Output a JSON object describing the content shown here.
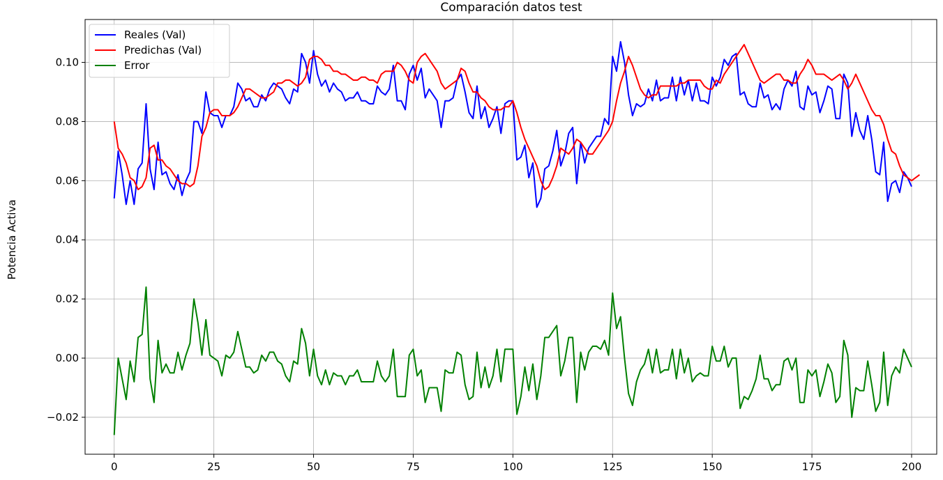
{
  "chart_data": {
    "type": "line",
    "title": "Comparación datos test",
    "xlabel": "",
    "ylabel": "Potencia Activa",
    "xlim": [
      -7.3,
      206.3
    ],
    "ylim": [
      -0.0325,
      0.1145
    ],
    "x_ticks": [
      0,
      25,
      50,
      75,
      100,
      125,
      150,
      175,
      200
    ],
    "x_tick_labels": [
      "0",
      "25",
      "50",
      "75",
      "100",
      "125",
      "150",
      "175",
      "200"
    ],
    "y_ticks": [
      -0.02,
      0.0,
      0.02,
      0.04,
      0.06,
      0.08,
      0.1
    ],
    "y_tick_labels": [
      "−0.02",
      "0.00",
      "0.02",
      "0.04",
      "0.06",
      "0.08",
      "0.10"
    ],
    "grid": true,
    "legend_position": "top-left",
    "series": [
      {
        "name": "Reales (Val)",
        "color": "#0000ff",
        "values": [
          0.054,
          0.07,
          0.062,
          0.052,
          0.06,
          0.052,
          0.064,
          0.066,
          0.086,
          0.064,
          0.057,
          0.073,
          0.062,
          0.063,
          0.059,
          0.057,
          0.062,
          0.055,
          0.06,
          0.063,
          0.08,
          0.08,
          0.076,
          0.09,
          0.083,
          0.082,
          0.082,
          0.078,
          0.082,
          0.082,
          0.085,
          0.093,
          0.091,
          0.087,
          0.088,
          0.085,
          0.085,
          0.089,
          0.087,
          0.091,
          0.093,
          0.092,
          0.091,
          0.088,
          0.086,
          0.091,
          0.09,
          0.103,
          0.1,
          0.093,
          0.104,
          0.096,
          0.092,
          0.094,
          0.09,
          0.093,
          0.091,
          0.09,
          0.087,
          0.088,
          0.088,
          0.09,
          0.087,
          0.087,
          0.086,
          0.086,
          0.092,
          0.09,
          0.089,
          0.091,
          0.099,
          0.087,
          0.087,
          0.084,
          0.096,
          0.099,
          0.094,
          0.098,
          0.088,
          0.091,
          0.089,
          0.087,
          0.078,
          0.087,
          0.087,
          0.088,
          0.094,
          0.096,
          0.09,
          0.083,
          0.081,
          0.092,
          0.081,
          0.085,
          0.078,
          0.081,
          0.085,
          0.076,
          0.086,
          0.087,
          0.087,
          0.067,
          0.068,
          0.072,
          0.061,
          0.066,
          0.051,
          0.054,
          0.064,
          0.065,
          0.07,
          0.077,
          0.065,
          0.069,
          0.076,
          0.078,
          0.059,
          0.073,
          0.066,
          0.071,
          0.073,
          0.075,
          0.075,
          0.081,
          0.079,
          0.102,
          0.097,
          0.107,
          0.1,
          0.089,
          0.082,
          0.086,
          0.085,
          0.086,
          0.091,
          0.087,
          0.094,
          0.087,
          0.088,
          0.088,
          0.095,
          0.087,
          0.095,
          0.089,
          0.094,
          0.087,
          0.093,
          0.087,
          0.087,
          0.086,
          0.095,
          0.092,
          0.095,
          0.101,
          0.099,
          0.102,
          0.103,
          0.089,
          0.09,
          0.086,
          0.085,
          0.085,
          0.093,
          0.088,
          0.089,
          0.084,
          0.086,
          0.084,
          0.091,
          0.094,
          0.092,
          0.097,
          0.085,
          0.084,
          0.092,
          0.089,
          0.09,
          0.083,
          0.087,
          0.092,
          0.091,
          0.081,
          0.081,
          0.096,
          0.093,
          0.075,
          0.083,
          0.077,
          0.074,
          0.082,
          0.074,
          0.063,
          0.062,
          0.073,
          0.053,
          0.059,
          0.06,
          0.056,
          0.063,
          0.061,
          0.058
        ]
      },
      {
        "name": "Predichas (Val)",
        "color": "#ff0000",
        "values": [
          0.08,
          0.071,
          0.069,
          0.066,
          0.061,
          0.06,
          0.057,
          0.058,
          0.061,
          0.071,
          0.072,
          0.067,
          0.067,
          0.065,
          0.064,
          0.062,
          0.06,
          0.059,
          0.059,
          0.058,
          0.059,
          0.065,
          0.075,
          0.078,
          0.083,
          0.084,
          0.084,
          0.082,
          0.082,
          0.082,
          0.083,
          0.085,
          0.088,
          0.091,
          0.091,
          0.09,
          0.089,
          0.088,
          0.088,
          0.089,
          0.09,
          0.093,
          0.093,
          0.094,
          0.094,
          0.093,
          0.092,
          0.093,
          0.095,
          0.101,
          0.102,
          0.102,
          0.101,
          0.099,
          0.099,
          0.097,
          0.097,
          0.096,
          0.096,
          0.095,
          0.094,
          0.094,
          0.095,
          0.095,
          0.094,
          0.094,
          0.093,
          0.096,
          0.097,
          0.097,
          0.097,
          0.1,
          0.099,
          0.097,
          0.094,
          0.093,
          0.1,
          0.102,
          0.103,
          0.101,
          0.099,
          0.097,
          0.093,
          0.091,
          0.092,
          0.093,
          0.094,
          0.098,
          0.097,
          0.093,
          0.09,
          0.09,
          0.088,
          0.087,
          0.085,
          0.084,
          0.084,
          0.084,
          0.085,
          0.085,
          0.087,
          0.083,
          0.078,
          0.074,
          0.071,
          0.068,
          0.065,
          0.06,
          0.057,
          0.058,
          0.061,
          0.065,
          0.071,
          0.07,
          0.069,
          0.071,
          0.074,
          0.073,
          0.071,
          0.069,
          0.069,
          0.071,
          0.073,
          0.075,
          0.077,
          0.08,
          0.087,
          0.093,
          0.097,
          0.102,
          0.099,
          0.095,
          0.091,
          0.089,
          0.088,
          0.089,
          0.089,
          0.092,
          0.092,
          0.092,
          0.092,
          0.092,
          0.093,
          0.093,
          0.094,
          0.094,
          0.094,
          0.094,
          0.092,
          0.091,
          0.091,
          0.094,
          0.093,
          0.096,
          0.098,
          0.1,
          0.102,
          0.104,
          0.106,
          0.103,
          0.1,
          0.097,
          0.094,
          0.093,
          0.094,
          0.095,
          0.096,
          0.096,
          0.094,
          0.094,
          0.093,
          0.093,
          0.096,
          0.098,
          0.101,
          0.099,
          0.096,
          0.096,
          0.096,
          0.095,
          0.094,
          0.095,
          0.096,
          0.094,
          0.091,
          0.093,
          0.096,
          0.093,
          0.09,
          0.087,
          0.084,
          0.082,
          0.082,
          0.079,
          0.074,
          0.07,
          0.069,
          0.065,
          0.062,
          0.061,
          0.06,
          0.061,
          0.062
        ]
      },
      {
        "name": "Error",
        "color": "#008000",
        "values": [
          -0.026,
          0.0,
          -0.007,
          -0.014,
          -0.001,
          -0.008,
          0.007,
          0.008,
          0.024,
          -0.007,
          -0.015,
          0.006,
          -0.005,
          -0.002,
          -0.005,
          -0.005,
          0.002,
          -0.004,
          0.001,
          0.005,
          0.02,
          0.012,
          0.001,
          0.013,
          0.001,
          0.0,
          -0.001,
          -0.006,
          0.001,
          0.0,
          0.002,
          0.009,
          0.003,
          -0.003,
          -0.003,
          -0.005,
          -0.004,
          0.001,
          -0.001,
          0.002,
          0.002,
          -0.001,
          -0.002,
          -0.006,
          -0.008,
          -0.001,
          -0.002,
          0.01,
          0.005,
          -0.006,
          0.003,
          -0.006,
          -0.009,
          -0.004,
          -0.009,
          -0.005,
          -0.006,
          -0.006,
          -0.009,
          -0.006,
          -0.006,
          -0.004,
          -0.008,
          -0.008,
          -0.008,
          -0.008,
          -0.001,
          -0.006,
          -0.008,
          -0.006,
          0.003,
          -0.013,
          -0.013,
          -0.013,
          0.001,
          0.003,
          -0.006,
          -0.004,
          -0.015,
          -0.01,
          -0.01,
          -0.01,
          -0.018,
          -0.004,
          -0.005,
          -0.005,
          0.002,
          0.001,
          -0.009,
          -0.014,
          -0.013,
          0.002,
          -0.01,
          -0.003,
          -0.01,
          -0.006,
          0.003,
          -0.008,
          0.003,
          0.003,
          0.003,
          -0.019,
          -0.013,
          -0.003,
          -0.011,
          -0.002,
          -0.014,
          -0.006,
          0.007,
          0.007,
          0.009,
          0.011,
          -0.006,
          -0.001,
          0.007,
          0.007,
          -0.015,
          0.002,
          -0.004,
          0.002,
          0.004,
          0.004,
          0.003,
          0.006,
          0.001,
          0.022,
          0.01,
          0.014,
          0.0,
          -0.012,
          -0.016,
          -0.008,
          -0.004,
          -0.002,
          0.003,
          -0.005,
          0.003,
          -0.005,
          -0.004,
          -0.004,
          0.003,
          -0.007,
          0.003,
          -0.005,
          0.0,
          -0.008,
          -0.006,
          -0.005,
          -0.006,
          -0.006,
          0.004,
          -0.001,
          -0.001,
          0.004,
          -0.003,
          0.0,
          0.0,
          -0.017,
          -0.013,
          -0.014,
          -0.011,
          -0.007,
          0.001,
          -0.007,
          -0.007,
          -0.011,
          -0.009,
          -0.009,
          -0.001,
          0.0,
          -0.004,
          0.0,
          -0.015,
          -0.015,
          -0.004,
          -0.006,
          -0.004,
          -0.013,
          -0.008,
          -0.002,
          -0.005,
          -0.015,
          -0.013,
          0.006,
          0.001,
          -0.02,
          -0.01,
          -0.011,
          -0.011,
          -0.001,
          -0.009,
          -0.018,
          -0.015,
          0.002,
          -0.016,
          -0.006,
          -0.003,
          -0.005,
          0.003,
          0.0,
          -0.003
        ]
      }
    ]
  }
}
